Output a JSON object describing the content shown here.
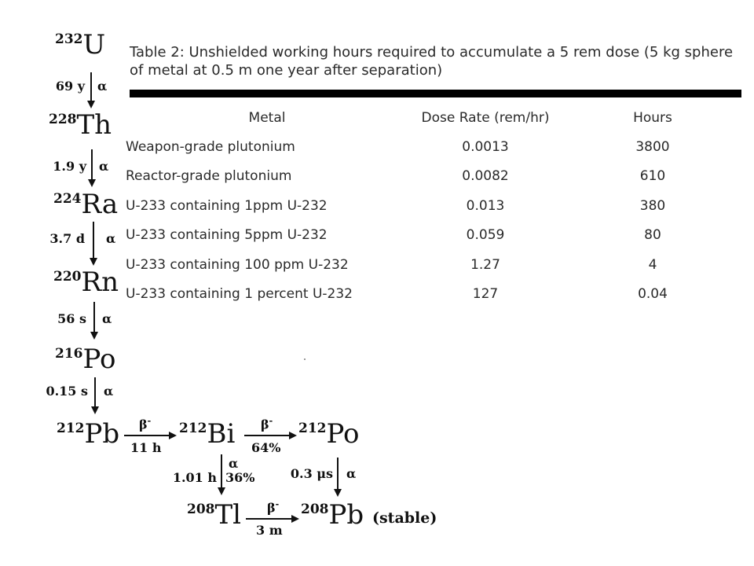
{
  "chain": {
    "nuclides": [
      {
        "mass": "232",
        "symbol": "U"
      },
      {
        "mass": "228",
        "symbol": "Th"
      },
      {
        "mass": "224",
        "symbol": "Ra"
      },
      {
        "mass": "220",
        "symbol": "Rn"
      },
      {
        "mass": "216",
        "symbol": "Po"
      },
      {
        "mass": "212",
        "symbol": "Pb"
      },
      {
        "mass": "212",
        "symbol": "Bi"
      },
      {
        "mass": "212",
        "symbol": "Po"
      },
      {
        "mass": "208",
        "symbol": "Tl"
      },
      {
        "mass": "208",
        "symbol": "Pb"
      }
    ],
    "decays": [
      {
        "halflife": "69 y",
        "mode": "α"
      },
      {
        "halflife": "1.9 y",
        "mode": "α"
      },
      {
        "halflife": "3.7 d",
        "mode": "α"
      },
      {
        "halflife": "56 s",
        "mode": "α"
      },
      {
        "halflife": "0.15 s",
        "mode": "α"
      },
      {
        "halflife": "11 h",
        "mode": "β-"
      },
      {
        "halflife": "",
        "mode": "β-",
        "branch": "64%"
      },
      {
        "halflife": "1.01 h",
        "mode": "α",
        "branch": "36%"
      },
      {
        "halflife": "0.3 μs",
        "mode": "α"
      },
      {
        "halflife": "3 m",
        "mode": "β-"
      }
    ],
    "stable_label": "(stable)"
  },
  "table": {
    "caption": "Table 2:  Unshielded working hours required to accumulate a 5 rem dose (5 kg sphere of metal at 0.5 m one year after separation)",
    "headers": [
      "Metal",
      "Dose Rate (rem/hr)",
      "Hours"
    ],
    "rows": [
      [
        "Weapon-grade plutonium",
        "0.0013",
        "3800"
      ],
      [
        "Reactor-grade plutonium",
        "0.0082",
        "610"
      ],
      [
        "U-233 containing 1ppm U-232",
        "0.013",
        "380"
      ],
      [
        "U-233 containing 5ppm U-232",
        "0.059",
        "80"
      ],
      [
        "U-233 containing 100 ppm U-232",
        "1.27",
        "4"
      ],
      [
        "U-233 containing 1 percent U-232",
        "127",
        "0.04"
      ]
    ]
  }
}
